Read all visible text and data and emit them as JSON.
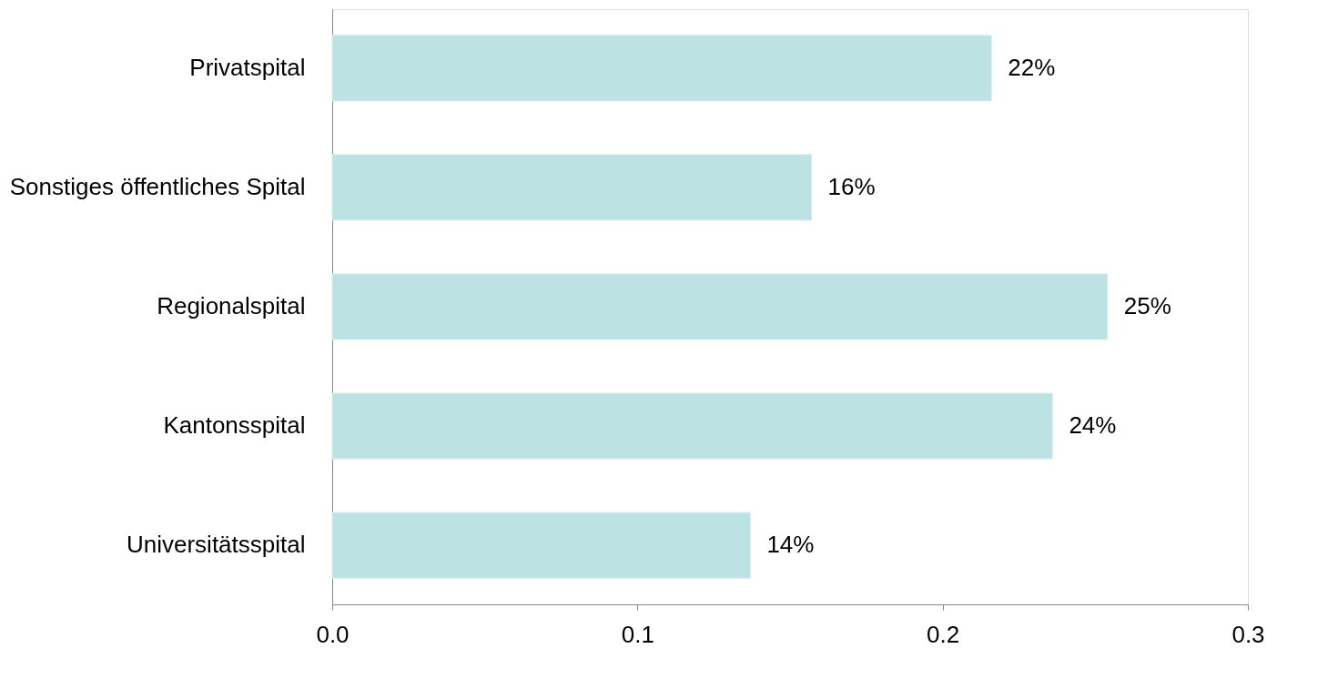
{
  "chart_data": {
    "type": "bar",
    "orientation": "horizontal",
    "categories": [
      "Privatspital",
      "Sonstiges öffentliches Spital",
      "Regionalspital",
      "Kantonsspital",
      "Universitätsspital"
    ],
    "values": [
      0.216,
      0.157,
      0.254,
      0.236,
      0.137
    ],
    "value_labels": [
      "22%",
      "16%",
      "25%",
      "24%",
      "14%"
    ],
    "color": "#bce2e3",
    "xlim": [
      0,
      0.3
    ],
    "xticks": [
      {
        "value": 0,
        "label": "0.0"
      },
      {
        "value": 0.1,
        "label": "0.1"
      },
      {
        "value": 0.2,
        "label": "0.2"
      },
      {
        "value": 0.3,
        "label": "0.3"
      }
    ],
    "grid": false
  }
}
